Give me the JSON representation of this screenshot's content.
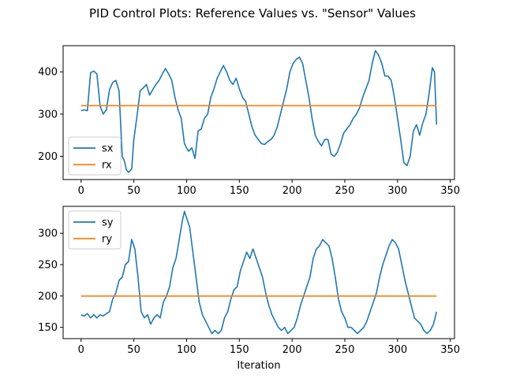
{
  "figure": {
    "title": "PID Control Plots: Reference Values vs. \"Sensor\" Values"
  },
  "colors": {
    "sensor": "#1f77b4",
    "reference": "#ff7f0e"
  },
  "chart_data": [
    {
      "type": "line",
      "xlabel": "",
      "ylabel": "",
      "xlim": [
        -17,
        354
      ],
      "ylim": [
        145,
        462
      ],
      "xticks": [
        0,
        50,
        100,
        150,
        200,
        250,
        300,
        350
      ],
      "yticks": [
        200,
        300,
        400
      ],
      "legend_position": "lower-left",
      "series": [
        {
          "name": "sx",
          "x": [
            0,
            3,
            6,
            9,
            12,
            15,
            18,
            21,
            24,
            27,
            30,
            33,
            36,
            39,
            41,
            43,
            45,
            48,
            50,
            53,
            56,
            59,
            62,
            65,
            68,
            71,
            74,
            77,
            80,
            83,
            86,
            89,
            92,
            95,
            98,
            100,
            102,
            105,
            108,
            111,
            114,
            117,
            120,
            123,
            126,
            129,
            132,
            135,
            138,
            141,
            144,
            147,
            150,
            153,
            156,
            159,
            162,
            165,
            168,
            171,
            174,
            177,
            180,
            183,
            186,
            189,
            192,
            195,
            198,
            201,
            204,
            207,
            210,
            213,
            216,
            219,
            222,
            225,
            228,
            231,
            234,
            237,
            240,
            243,
            246,
            249,
            252,
            255,
            258,
            261,
            264,
            267,
            270,
            273,
            276,
            279,
            282,
            285,
            288,
            291,
            294,
            297,
            300,
            303,
            306,
            309,
            312,
            315,
            318,
            321,
            324,
            327,
            330,
            333,
            335,
            337
          ],
          "values": [
            308,
            310,
            308,
            398,
            402,
            395,
            320,
            300,
            310,
            358,
            375,
            380,
            355,
            200,
            190,
            168,
            162,
            170,
            240,
            295,
            355,
            362,
            370,
            345,
            358,
            370,
            380,
            395,
            408,
            395,
            380,
            340,
            310,
            290,
            230,
            220,
            212,
            220,
            195,
            260,
            265,
            290,
            300,
            340,
            360,
            385,
            400,
            415,
            400,
            380,
            370,
            385,
            360,
            340,
            330,
            300,
            270,
            250,
            240,
            230,
            228,
            235,
            240,
            250,
            270,
            300,
            330,
            360,
            400,
            420,
            430,
            435,
            420,
            380,
            340,
            290,
            250,
            235,
            225,
            240,
            240,
            205,
            200,
            210,
            230,
            255,
            265,
            275,
            290,
            300,
            315,
            340,
            360,
            380,
            420,
            450,
            440,
            420,
            390,
            390,
            380,
            340,
            290,
            240,
            185,
            178,
            200,
            260,
            275,
            250,
            280,
            300,
            350,
            410,
            400,
            275
          ]
        },
        {
          "name": "rx",
          "x": [
            0,
            337
          ],
          "values": [
            320,
            320
          ]
        }
      ]
    },
    {
      "type": "line",
      "xlabel": "Iteration",
      "ylabel": "",
      "xlim": [
        -17,
        354
      ],
      "ylim": [
        132,
        343
      ],
      "xticks": [
        0,
        50,
        100,
        150,
        200,
        250,
        300,
        350
      ],
      "yticks": [
        150,
        200,
        250,
        300
      ],
      "legend_position": "upper-left",
      "series": [
        {
          "name": "sy",
          "x": [
            0,
            3,
            6,
            9,
            12,
            15,
            18,
            21,
            24,
            27,
            30,
            33,
            36,
            39,
            42,
            45,
            48,
            51,
            54,
            57,
            60,
            63,
            66,
            69,
            72,
            75,
            78,
            81,
            84,
            87,
            90,
            93,
            96,
            98,
            100,
            103,
            106,
            109,
            112,
            115,
            118,
            121,
            124,
            127,
            130,
            133,
            136,
            139,
            142,
            145,
            148,
            151,
            154,
            157,
            160,
            163,
            166,
            169,
            172,
            175,
            178,
            181,
            184,
            187,
            190,
            193,
            196,
            199,
            202,
            205,
            208,
            211,
            214,
            217,
            220,
            223,
            226,
            229,
            232,
            235,
            238,
            241,
            244,
            247,
            250,
            253,
            256,
            259,
            262,
            265,
            268,
            271,
            274,
            277,
            280,
            283,
            286,
            289,
            292,
            295,
            298,
            301,
            304,
            307,
            310,
            313,
            316,
            319,
            322,
            325,
            328,
            331,
            334,
            337
          ],
          "values": [
            170,
            168,
            172,
            165,
            170,
            165,
            170,
            168,
            172,
            175,
            195,
            205,
            225,
            230,
            250,
            255,
            290,
            275,
            230,
            175,
            165,
            170,
            155,
            165,
            170,
            165,
            190,
            200,
            215,
            245,
            260,
            290,
            320,
            335,
            325,
            310,
            270,
            230,
            190,
            170,
            160,
            150,
            140,
            145,
            140,
            145,
            165,
            175,
            195,
            210,
            215,
            240,
            255,
            270,
            260,
            275,
            260,
            245,
            230,
            205,
            185,
            170,
            160,
            150,
            145,
            150,
            140,
            145,
            150,
            165,
            185,
            200,
            215,
            230,
            260,
            275,
            280,
            290,
            285,
            280,
            260,
            230,
            195,
            175,
            165,
            150,
            150,
            145,
            140,
            145,
            150,
            160,
            175,
            190,
            205,
            230,
            250,
            265,
            280,
            290,
            285,
            275,
            250,
            225,
            205,
            185,
            165,
            160,
            155,
            145,
            140,
            145,
            155,
            175
          ]
        },
        {
          "name": "ry",
          "x": [
            0,
            337
          ],
          "values": [
            200,
            200
          ]
        }
      ]
    }
  ]
}
